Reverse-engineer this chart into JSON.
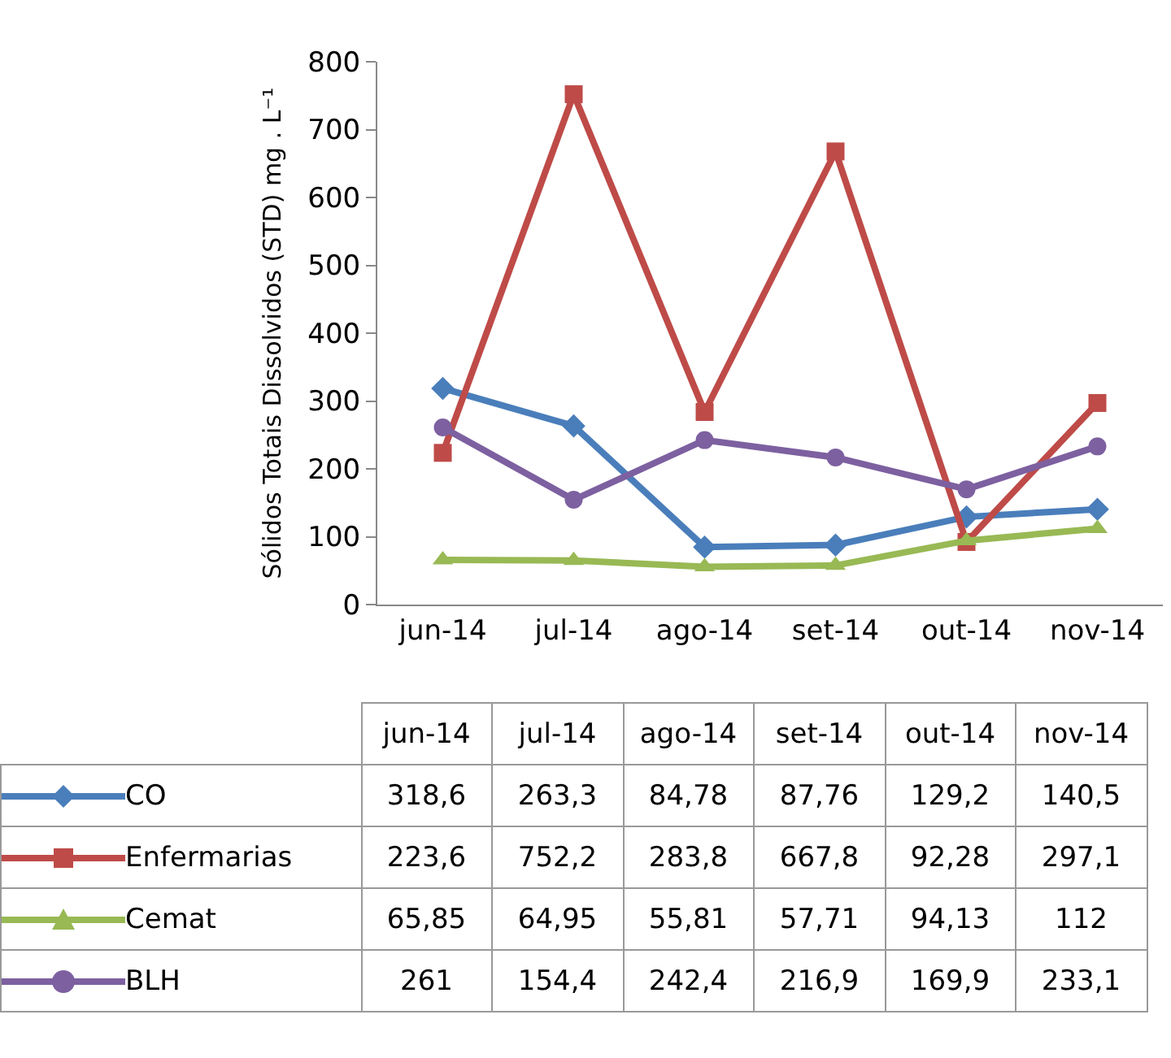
{
  "chart_data": {
    "type": "line",
    "ylabel": "Sólidos Totais Dissolvidos (STD) mg . L⁻¹",
    "categories": [
      "jun-14",
      "jul-14",
      "ago-14",
      "set-14",
      "out-14",
      "nov-14"
    ],
    "ylim": [
      0,
      800
    ],
    "yticks": [
      0,
      100,
      200,
      300,
      400,
      500,
      600,
      700,
      800
    ],
    "grid": false,
    "legend": "bottom",
    "line_style": "solid",
    "series": [
      {
        "name": "CO",
        "color": "#4a7ebb",
        "marker": "diamond",
        "values": [
          318.6,
          263.3,
          84.78,
          87.76,
          129.2,
          140.5
        ],
        "value_labels": [
          "318,6",
          "263,3",
          "84,78",
          "87,76",
          "129,2",
          "140,5"
        ]
      },
      {
        "name": "Enfermarias",
        "color": "#be4b48",
        "marker": "square",
        "values": [
          223.6,
          752.2,
          283.8,
          667.8,
          92.28,
          297.1
        ],
        "value_labels": [
          "223,6",
          "752,2",
          "283,8",
          "667,8",
          "92,28",
          "297,1"
        ]
      },
      {
        "name": "Cemat",
        "color": "#98b954",
        "marker": "triangle",
        "values": [
          65.85,
          64.95,
          55.81,
          57.71,
          94.13,
          112
        ],
        "value_labels": [
          "65,85",
          "64,95",
          "55,81",
          "57,71",
          "94,13",
          "112"
        ]
      },
      {
        "name": "BLH",
        "color": "#7d60a0",
        "marker": "circle",
        "values": [
          261,
          154.4,
          242.4,
          216.9,
          169.9,
          233.1
        ],
        "value_labels": [
          "261",
          "154,4",
          "242,4",
          "216,9",
          "169,9",
          "233,1"
        ]
      }
    ]
  }
}
